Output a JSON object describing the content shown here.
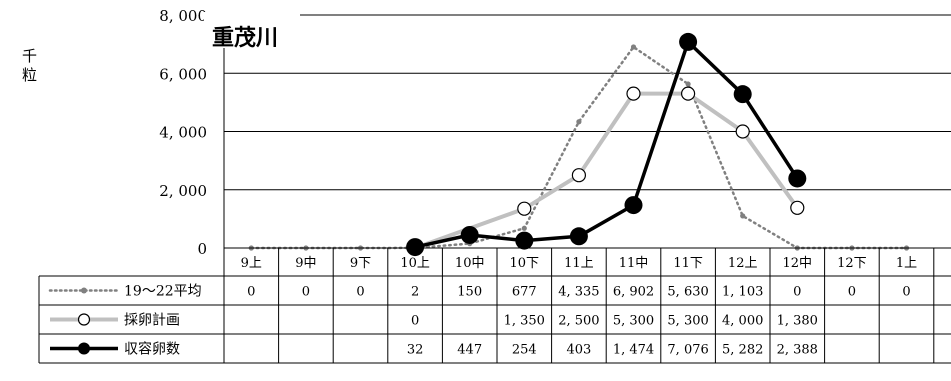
{
  "chart_data": {
    "type": "line",
    "title": "重茂川",
    "ylabel": "千粒",
    "ylim": [
      0,
      8000
    ],
    "yticks": [
      "0",
      "2, 000",
      "4, 000",
      "6, 000",
      "8, 000"
    ],
    "ytick_values": [
      0,
      2000,
      4000,
      6000,
      8000
    ],
    "grid": true,
    "legend": "table-left",
    "categories": [
      "9上",
      "9中",
      "9下",
      "10上",
      "10中",
      "10下",
      "11上",
      "11中",
      "11下",
      "12上",
      "12中",
      "12下",
      "1上"
    ],
    "series": [
      {
        "name": "19～22平均",
        "style": "dotted",
        "color": "#808080",
        "values": [
          0,
          0,
          0,
          2,
          150,
          677,
          4335,
          6902,
          5630,
          1103,
          0,
          0,
          0
        ],
        "labels": [
          "0",
          "0",
          "0",
          "2",
          "150",
          "677",
          "4, 335",
          "6, 902",
          "5, 630",
          "1, 103",
          "0",
          "0",
          "0"
        ]
      },
      {
        "name": "採卵計画",
        "style": "gray-open-circle",
        "color": "#c0c0c0",
        "values": [
          null,
          null,
          null,
          0,
          null,
          1350,
          2500,
          5300,
          5300,
          4000,
          1380,
          null,
          null
        ],
        "labels": [
          "",
          "",
          "",
          "0",
          "",
          "1, 350",
          "2, 500",
          "5, 300",
          "5, 300",
          "4, 000",
          "1, 380",
          "",
          ""
        ]
      },
      {
        "name": "収容卵数",
        "style": "black-filled-circle",
        "color": "#000000",
        "values": [
          null,
          null,
          null,
          32,
          447,
          254,
          403,
          1474,
          7076,
          5282,
          2388,
          null,
          null
        ],
        "labels": [
          "",
          "",
          "",
          "32",
          "447",
          "254",
          "403",
          "1, 474",
          "7, 076",
          "5, 282",
          "2, 388",
          "",
          ""
        ]
      }
    ]
  }
}
